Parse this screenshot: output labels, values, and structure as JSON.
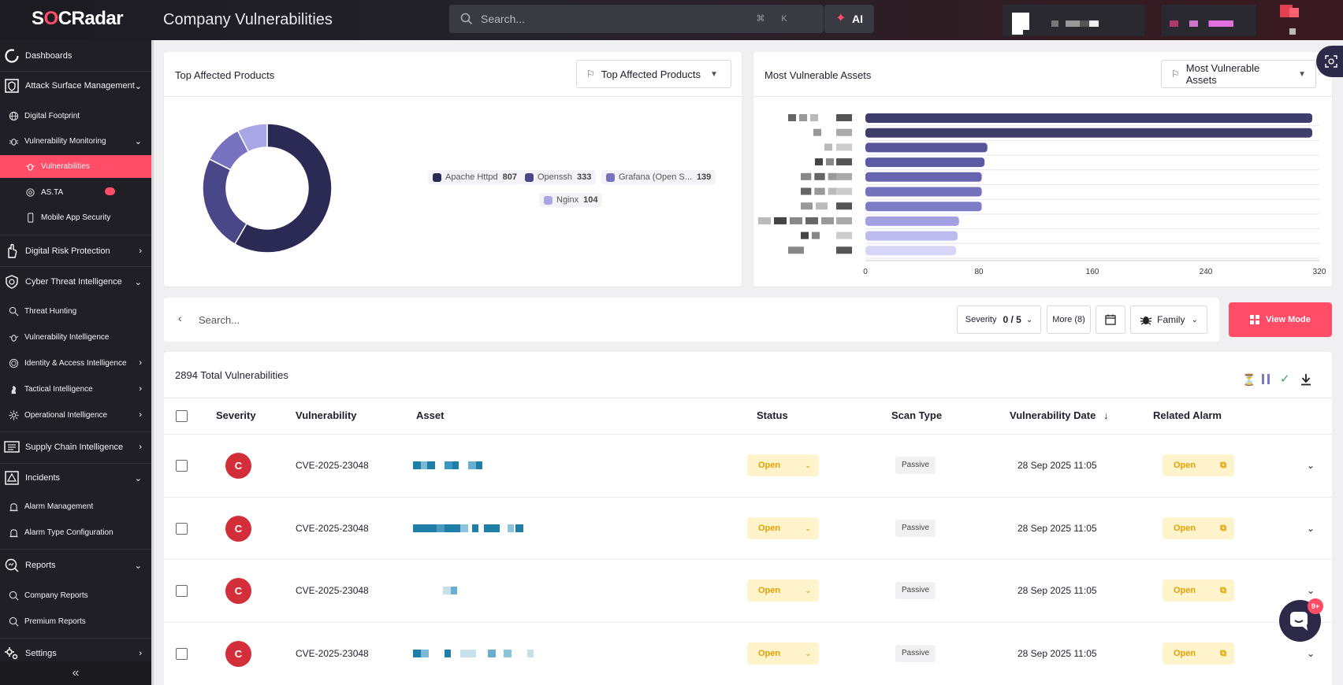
{
  "app": {
    "logo_text": "SOCRadar",
    "page_title": "Company Vulnerabilities"
  },
  "topbar": {
    "search_placeholder": "Search...",
    "kbd1": "⌘",
    "kbd2": "K",
    "ai_label": "AI"
  },
  "sidebar": {
    "items": [
      {
        "label": "Dashboards",
        "icon": "dashboard-icon"
      },
      {
        "label": "Attack Surface Management",
        "icon": "shield-icon"
      },
      {
        "label": "Digital Footprint",
        "icon": "globe-icon"
      },
      {
        "label": "Vulnerability Monitoring",
        "icon": "bug-icon"
      },
      {
        "label": "Vulnerabilities",
        "icon": "bug-icon"
      },
      {
        "label": "AS.TA",
        "icon": "radar-icon"
      },
      {
        "label": "Mobile App Security",
        "icon": "mobile-icon"
      },
      {
        "label": "Digital Risk Protection",
        "icon": "hand-icon"
      },
      {
        "label": "Cyber Threat Intelligence",
        "icon": "fingerprint-icon"
      },
      {
        "label": "Threat Hunting",
        "icon": "search-icon"
      },
      {
        "label": "Vulnerability Intelligence",
        "icon": "bug-icon"
      },
      {
        "label": "Identity & Access Intelligence",
        "icon": "fingerprint-icon"
      },
      {
        "label": "Tactical Intelligence",
        "icon": "chess-icon"
      },
      {
        "label": "Operational Intelligence",
        "icon": "gear-icon"
      },
      {
        "label": "Supply Chain Intelligence",
        "icon": "network-icon"
      },
      {
        "label": "Incidents",
        "icon": "alert-icon"
      },
      {
        "label": "Alarm Management",
        "icon": "alarm-icon"
      },
      {
        "label": "Alarm Type Configuration",
        "icon": "alarm-icon"
      },
      {
        "label": "Reports",
        "icon": "report-icon"
      },
      {
        "label": "Company Reports",
        "icon": "report-icon"
      },
      {
        "label": "Premium Reports",
        "icon": "report-icon"
      },
      {
        "label": "Settings",
        "icon": "gear-icon"
      }
    ],
    "collapse_label": "«"
  },
  "top_products": {
    "title": "Top Affected Products",
    "dropdown": "Top Affected Products",
    "chart_data": {
      "type": "pie",
      "categories": [
        "Apache Httpd",
        "Openssh",
        "Grafana (Open S...",
        "Nginx"
      ],
      "values": [
        807,
        333,
        139,
        104
      ],
      "colors": [
        "#2b2a55",
        "#4a4788",
        "#7773c0",
        "#a9a6e6"
      ]
    }
  },
  "vuln_assets": {
    "title": "Most Vulnerable Assets",
    "dropdown": "Most Vulnerable Assets",
    "chart_data": {
      "type": "bar",
      "orientation": "horizontal",
      "values": [
        315,
        315,
        86,
        84,
        82,
        82,
        82,
        66,
        65,
        64
      ],
      "xlim": [
        0,
        320
      ],
      "xticks": [
        "0",
        "80",
        "160",
        "240",
        "320"
      ],
      "colors": [
        "#3f3d6b",
        "#3f3d6b",
        "#58559a",
        "#5d5aa5",
        "#6865b0",
        "#7572bd",
        "#7f7cc7",
        "#a3a0e2",
        "#bdbaee",
        "#d8d6f6"
      ]
    }
  },
  "filters": {
    "search_placeholder": "Search...",
    "severity_label": "Severity",
    "severity_value": "0 / 5",
    "more_label": "More (8)",
    "family_label": "Family",
    "view_mode_label": "View Mode"
  },
  "table": {
    "total": "2894 Total Vulnerabilities",
    "columns": [
      "Severity",
      "Vulnerability",
      "Asset",
      "Status",
      "Scan Type",
      "Vulnerability Date",
      "Related Alarm"
    ],
    "sort_indicator": "↓",
    "rows": [
      {
        "severity": "C",
        "vulnerability": "CVE-2025-23048",
        "status": "Open",
        "scan_type": "Passive",
        "date": "28 Sep 2025 11:05",
        "alarm": "Open"
      },
      {
        "severity": "C",
        "vulnerability": "CVE-2025-23048",
        "status": "Open",
        "scan_type": "Passive",
        "date": "28 Sep 2025 11:05",
        "alarm": "Open"
      },
      {
        "severity": "C",
        "vulnerability": "CVE-2025-23048",
        "status": "Open",
        "scan_type": "Passive",
        "date": "28 Sep 2025 11:05",
        "alarm": "Open"
      },
      {
        "severity": "C",
        "vulnerability": "CVE-2025-23048",
        "status": "Open",
        "scan_type": "Passive",
        "date": "28 Sep 2025 11:05",
        "alarm": "Open"
      }
    ]
  },
  "help": {
    "badge": "9+"
  },
  "colors": {
    "accent": "#ff4d67",
    "sidebar_bg": "#211f26",
    "critical": "#d32f3a",
    "open_bg": "#fff3cc",
    "open_fg": "#e0a100"
  }
}
